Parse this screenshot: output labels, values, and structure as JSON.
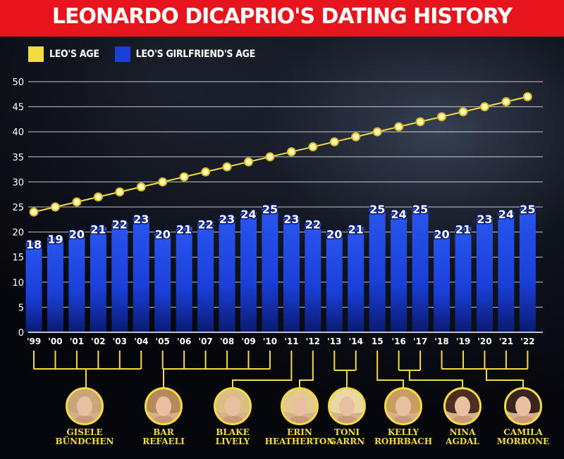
{
  "title": "LEONARDO DICAPRIO'S DATING HISTORY",
  "legend": [
    {
      "label": "LEO'S AGE",
      "color": "#f4dc3e"
    },
    {
      "label": "LEO'S GIRLFRIEND'S AGE",
      "color": "#1a3fd8"
    }
  ],
  "colors": {
    "header": "#e8141b",
    "bar": "#1a3fd8",
    "line": "#f4dc3e",
    "accent_yellow": "#f4dc3e"
  },
  "chart_data": {
    "type": "bar",
    "title": "LEONARDO DICAPRIO'S DATING HISTORY",
    "categories": [
      "'99",
      "'00",
      "'01",
      "'02",
      "'03",
      "'04",
      "'05",
      "'06",
      "'07",
      "'08",
      "'09",
      "'10",
      "'11",
      "'12",
      "'13",
      "'14",
      "15",
      "'16",
      "'17",
      "'18",
      "'19",
      "'20",
      "'21",
      "'22"
    ],
    "series": [
      {
        "name": "LEO'S GIRLFRIEND'S AGE",
        "type": "bar",
        "values": [
          18,
          19,
          20,
          21,
          22,
          23,
          20,
          21,
          22,
          23,
          24,
          25,
          23,
          22,
          20,
          21,
          25,
          24,
          25,
          20,
          21,
          23,
          24,
          25
        ]
      },
      {
        "name": "LEO'S AGE",
        "type": "line",
        "values": [
          24,
          25,
          26,
          27,
          28,
          29,
          30,
          31,
          32,
          33,
          34,
          35,
          36,
          37,
          38,
          39,
          40,
          41,
          42,
          43,
          44,
          45,
          46,
          47
        ]
      }
    ],
    "yticks": [
      0,
      5,
      10,
      15,
      20,
      25,
      30,
      35,
      40,
      45,
      50
    ],
    "ylim": [
      0,
      50
    ],
    "grid": true,
    "legend_position": "top-left"
  },
  "people": [
    {
      "name": "GISELE\nBÜNDCHEN",
      "hair": "#c9a57a"
    },
    {
      "name": "BAR\nREFAELI",
      "hair": "#b58b5e"
    },
    {
      "name": "BLAKE\nLIVELY",
      "hair": "#d9bf86"
    },
    {
      "name": "ERIN\nHEATHERTON",
      "hair": "#e2c98e"
    },
    {
      "name": "TONI\nGARRN",
      "hair": "#ead7a6"
    },
    {
      "name": "KELLY\nROHRBACH",
      "hair": "#c79d63"
    },
    {
      "name": "NINA\nAGDAL",
      "hair": "#4a2e22"
    },
    {
      "name": "CAMILA\nMORRONE",
      "hair": "#3a2420"
    }
  ]
}
